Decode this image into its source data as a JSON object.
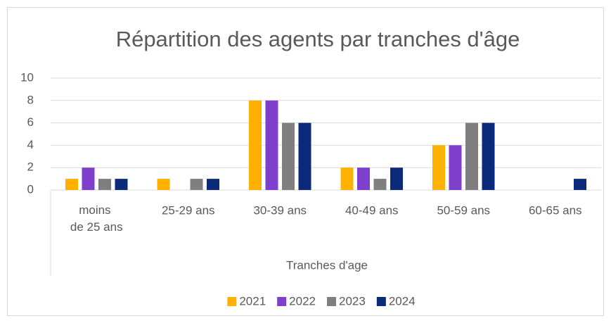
{
  "chart_data": {
    "type": "bar",
    "title": "Répartition des agents par tranches d'âge",
    "x_label": "Tranches d'age",
    "categories": [
      "moins de 25 ans",
      "25-29 ans",
      "30-39 ans",
      "40-49 ans",
      "50-59 ans",
      "60-65 ans"
    ],
    "series": [
      {
        "name": "2021",
        "color": "#FFB000",
        "values": [
          1,
          1,
          8,
          2,
          4,
          0
        ]
      },
      {
        "name": "2022",
        "color": "#7E40CC",
        "values": [
          2,
          0,
          8,
          2,
          4,
          0
        ]
      },
      {
        "name": "2023",
        "color": "#7F7F7F",
        "values": [
          1,
          1,
          6,
          1,
          6,
          0
        ]
      },
      {
        "name": "2024",
        "color": "#0B2A7A",
        "values": [
          1,
          1,
          6,
          2,
          6,
          1
        ]
      }
    ],
    "ylim": [
      0,
      10
    ],
    "yticks": [
      0,
      2,
      4,
      6,
      8,
      10
    ],
    "grid": true,
    "legend": "bottom"
  }
}
